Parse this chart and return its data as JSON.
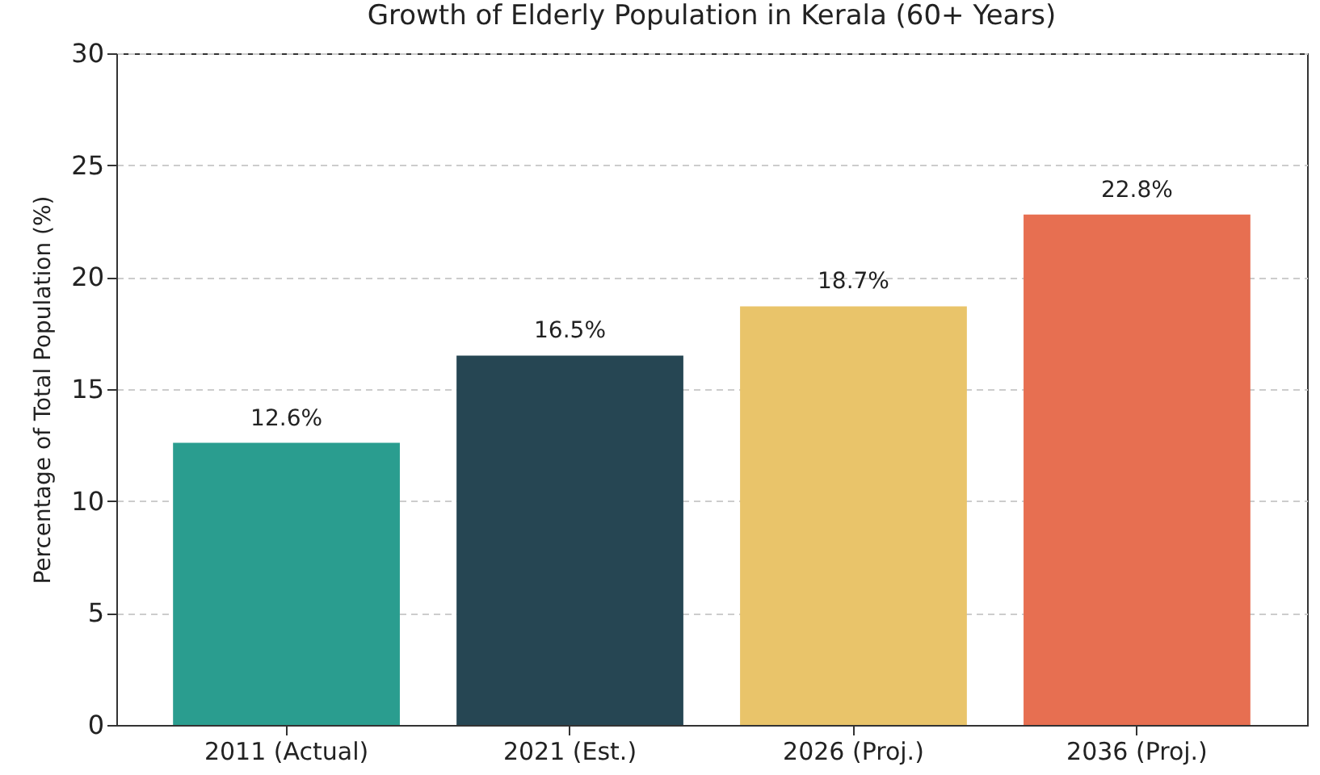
{
  "chart_data": {
    "type": "bar",
    "title": "Growth of Elderly Population in Kerala (60+ Years)",
    "ylabel": "Percentage of Total Population (%)",
    "categories": [
      "2011 (Actual)",
      "2021 (Est.)",
      "2026 (Proj.)",
      "2036 (Proj.)"
    ],
    "values": [
      12.6,
      16.5,
      18.7,
      22.8
    ],
    "colors": [
      "#2a9d8f",
      "#264653",
      "#e9c46a",
      "#e76f51"
    ],
    "value_labels": [
      "12.6%",
      "16.5%",
      "18.7%",
      "22.8%"
    ],
    "ylim": [
      0,
      30
    ],
    "yticks": [
      0,
      5,
      10,
      15,
      20,
      25,
      30
    ],
    "grid": "y"
  }
}
